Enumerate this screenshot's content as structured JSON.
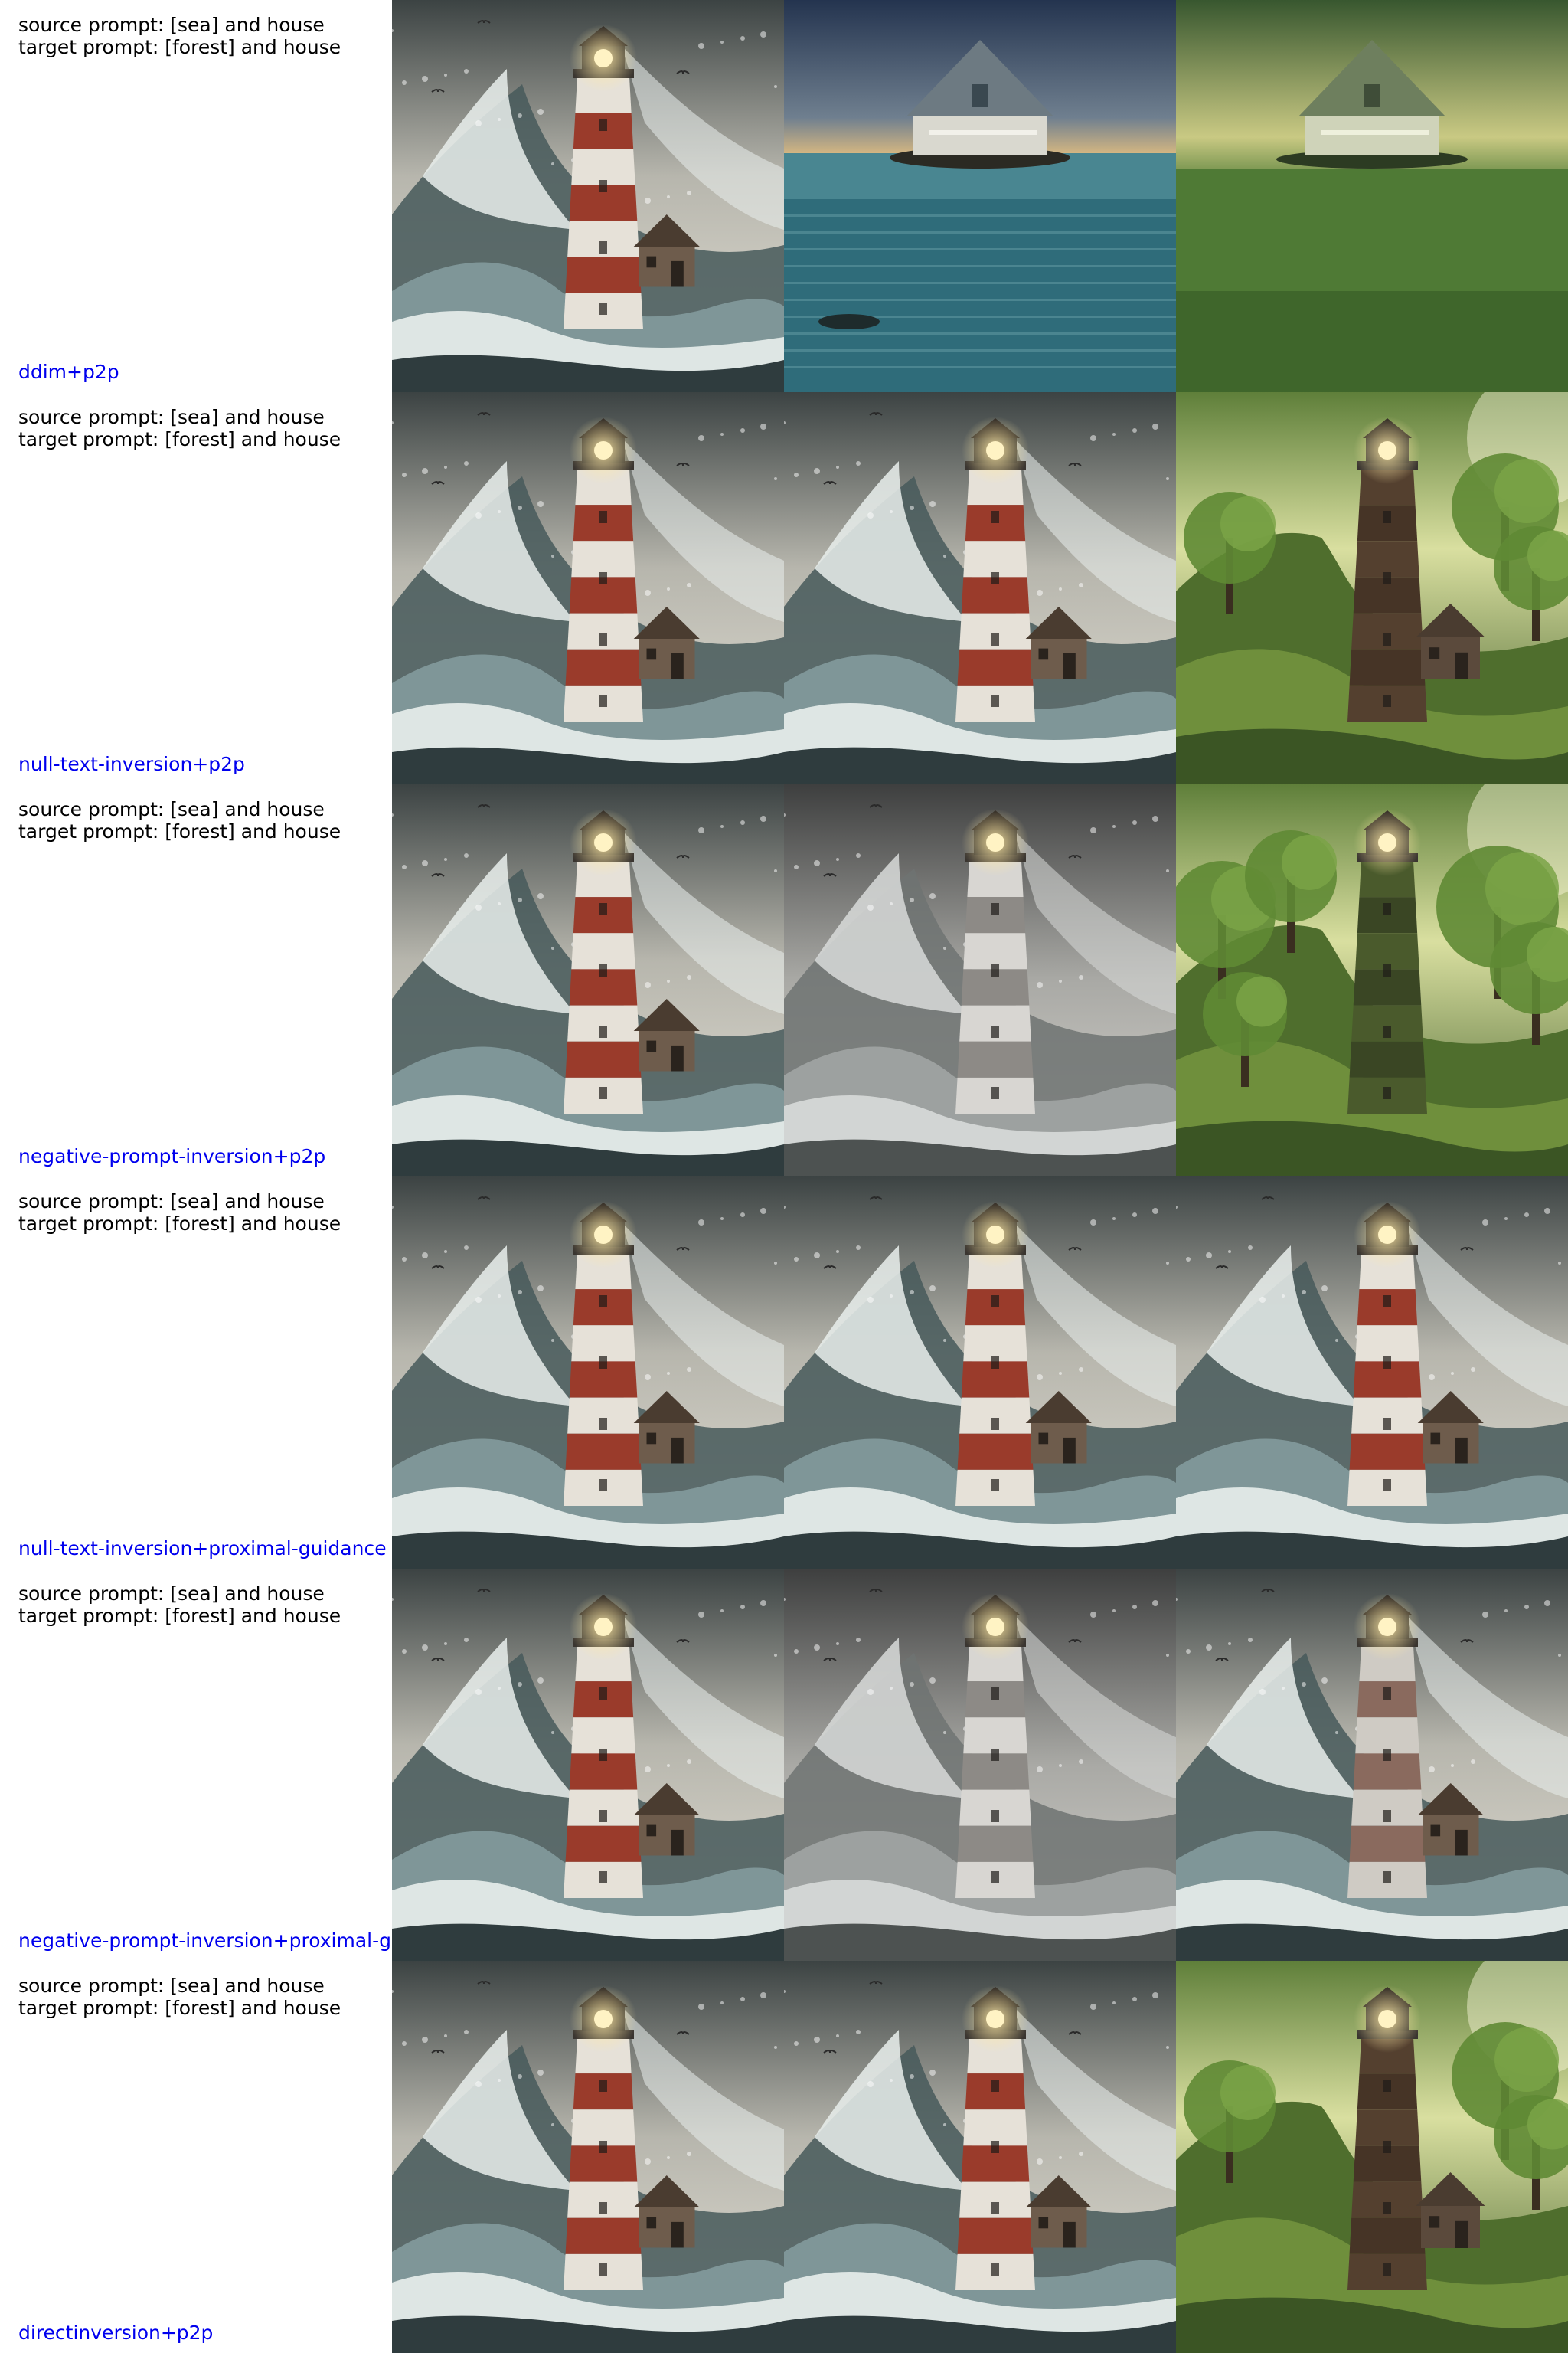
{
  "colors": {
    "method_label": "#0000ee",
    "prompt_text": "#000000",
    "background": "#ffffff"
  },
  "rows": [
    {
      "source_prompt": "source prompt: [sea] and house",
      "target_prompt": "target prompt: [forest] and house",
      "method": "ddim+p2p",
      "images": [
        "storm-lighthouse",
        "house-on-calm-sea",
        "house-on-green-field"
      ]
    },
    {
      "source_prompt": "source prompt: [sea] and house",
      "target_prompt": "target prompt: [forest] and house",
      "method": "null-text-inversion+p2p",
      "images": [
        "storm-lighthouse",
        "storm-lighthouse",
        "forest-lighthouse"
      ]
    },
    {
      "source_prompt": "source prompt: [sea] and house",
      "target_prompt": "target prompt: [forest] and house",
      "method": "negative-prompt-inversion+p2p",
      "images": [
        "storm-lighthouse",
        "storm-lighthouse-grey",
        "forest-tower"
      ]
    },
    {
      "source_prompt": "source prompt: [sea] and house",
      "target_prompt": "target prompt: [forest] and house",
      "method": "null-text-inversion+proximal-guidance",
      "images": [
        "storm-lighthouse",
        "storm-lighthouse",
        "storm-lighthouse"
      ]
    },
    {
      "source_prompt": "source prompt: [sea] and house",
      "target_prompt": "target prompt: [forest] and house",
      "method": "negative-prompt-inversion+proximal-guidance",
      "images": [
        "storm-lighthouse",
        "storm-lighthouse-grey",
        "storm-lighthouse-faded"
      ]
    },
    {
      "source_prompt": "source prompt: [sea] and house",
      "target_prompt": "target prompt: [forest] and house",
      "method": "directinversion+p2p",
      "images": [
        "storm-lighthouse",
        "storm-lighthouse",
        "forest-lighthouse"
      ]
    }
  ]
}
